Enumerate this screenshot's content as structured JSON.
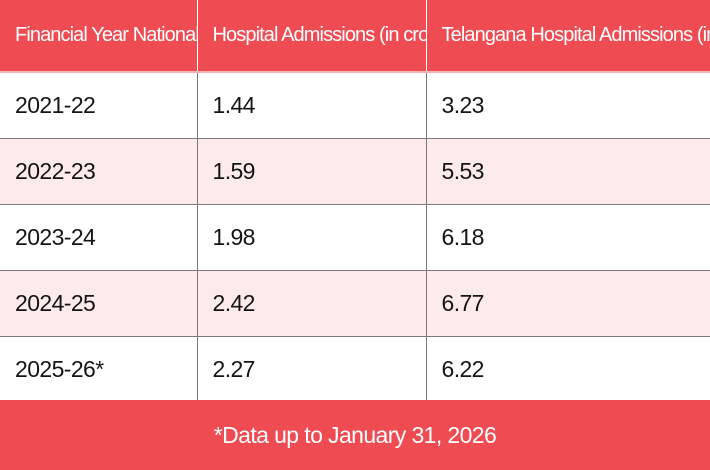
{
  "table": {
    "headers": [
      "Financial Year  National",
      "Hospital Admissions (in crore)",
      "Telangana Hospital Admissions (in lakh)"
    ],
    "rows": [
      [
        "2021-22",
        "1.44",
        "3.23"
      ],
      [
        "2022-23",
        "1.59",
        "5.53"
      ],
      [
        "2023-24",
        "1.98",
        "6.18"
      ],
      [
        "2024-25",
        "2.42",
        "6.77"
      ],
      [
        "2025-26*",
        "2.27",
        "6.22"
      ]
    ]
  },
  "footnote": "*Data up to January 31, 2026",
  "colors": {
    "accent": "#ef4b52",
    "row_alt": "#fdeaea",
    "row_base": "#ffffff",
    "text": "#151515"
  }
}
